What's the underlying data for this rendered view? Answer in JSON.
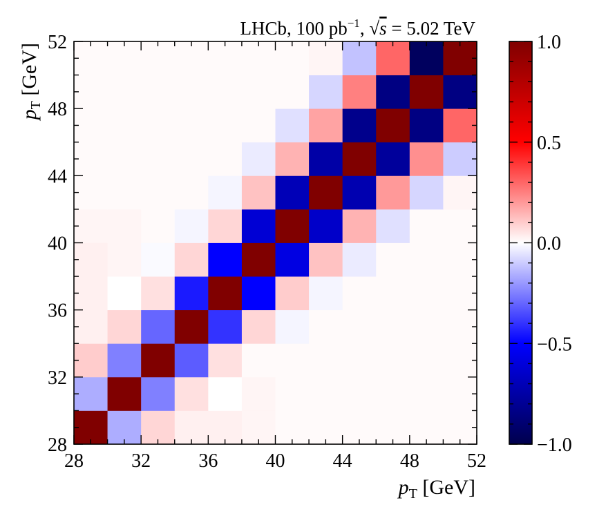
{
  "chart_data": {
    "type": "heatmap",
    "title_parts": {
      "pre": "LHCb, 100 pb",
      "sup": "−1",
      "mid": ", ",
      "sqrt_sym": "√",
      "s": "s",
      "post": " = 5.02 TeV"
    },
    "xlabel": {
      "p": "p",
      "sub": "T",
      "unit": " [GeV]"
    },
    "ylabel": {
      "p": "p",
      "sub": "T",
      "unit": " [GeV]"
    },
    "xlim": [
      28,
      52
    ],
    "ylim": [
      28,
      52
    ],
    "bin_edges": [
      28,
      30,
      32,
      34,
      36,
      38,
      40,
      42,
      44,
      46,
      48,
      50,
      52
    ],
    "xticks": [
      "28",
      "32",
      "36",
      "40",
      "44",
      "48",
      "52"
    ],
    "yticks": [
      "28",
      "32",
      "36",
      "40",
      "44",
      "48",
      "52"
    ],
    "colorbar": {
      "range": [
        -1.0,
        1.0
      ],
      "ticks": [
        "-1.0",
        "-0.5",
        "0.0",
        "0.5",
        "1.0"
      ],
      "tick_labels": [
        "−1.0",
        "−0.5",
        "0.0",
        "0.5",
        "1.0"
      ],
      "colormap": "seismic"
    },
    "matrix": [
      [
        1.0,
        -0.16,
        0.08,
        0.03,
        0.03,
        0.02,
        0.01,
        0.01,
        0.01,
        0.01,
        0.01,
        0.01
      ],
      [
        -0.16,
        1.0,
        -0.25,
        0.06,
        0.0,
        0.02,
        0.01,
        0.01,
        0.01,
        0.01,
        0.01,
        0.01
      ],
      [
        0.1,
        -0.25,
        1.0,
        -0.32,
        0.06,
        0.01,
        0.01,
        0.01,
        0.01,
        0.01,
        0.01,
        0.01
      ],
      [
        0.03,
        0.08,
        -0.3,
        1.0,
        -0.4,
        0.08,
        -0.02,
        0.01,
        0.01,
        0.01,
        0.01,
        0.01
      ],
      [
        0.03,
        0.0,
        0.06,
        -0.45,
        1.0,
        -0.5,
        0.1,
        -0.02,
        0.01,
        0.01,
        0.01,
        0.01
      ],
      [
        0.03,
        0.02,
        -0.01,
        0.08,
        -0.5,
        1.0,
        -0.58,
        0.12,
        -0.04,
        0.01,
        0.01,
        0.01
      ],
      [
        0.02,
        0.02,
        0.01,
        -0.02,
        0.08,
        -0.62,
        1.0,
        -0.65,
        0.15,
        -0.06,
        0.01,
        0.01
      ],
      [
        0.01,
        0.01,
        0.01,
        0.01,
        -0.02,
        0.12,
        -0.7,
        1.0,
        -0.72,
        0.2,
        -0.08,
        0.02
      ],
      [
        0.01,
        0.01,
        0.01,
        0.01,
        0.01,
        -0.04,
        0.15,
        -0.75,
        1.0,
        -0.78,
        0.22,
        -0.1
      ],
      [
        0.01,
        0.01,
        0.01,
        0.01,
        0.01,
        0.01,
        -0.06,
        0.18,
        -0.82,
        1.0,
        -0.85,
        0.3
      ],
      [
        0.01,
        0.01,
        0.01,
        0.01,
        0.01,
        0.01,
        0.01,
        -0.08,
        0.25,
        -0.85,
        1.0,
        -0.85
      ],
      [
        0.01,
        0.01,
        0.01,
        0.01,
        0.01,
        0.01,
        0.01,
        0.02,
        -0.12,
        0.3,
        -0.95,
        1.0
      ]
    ]
  }
}
